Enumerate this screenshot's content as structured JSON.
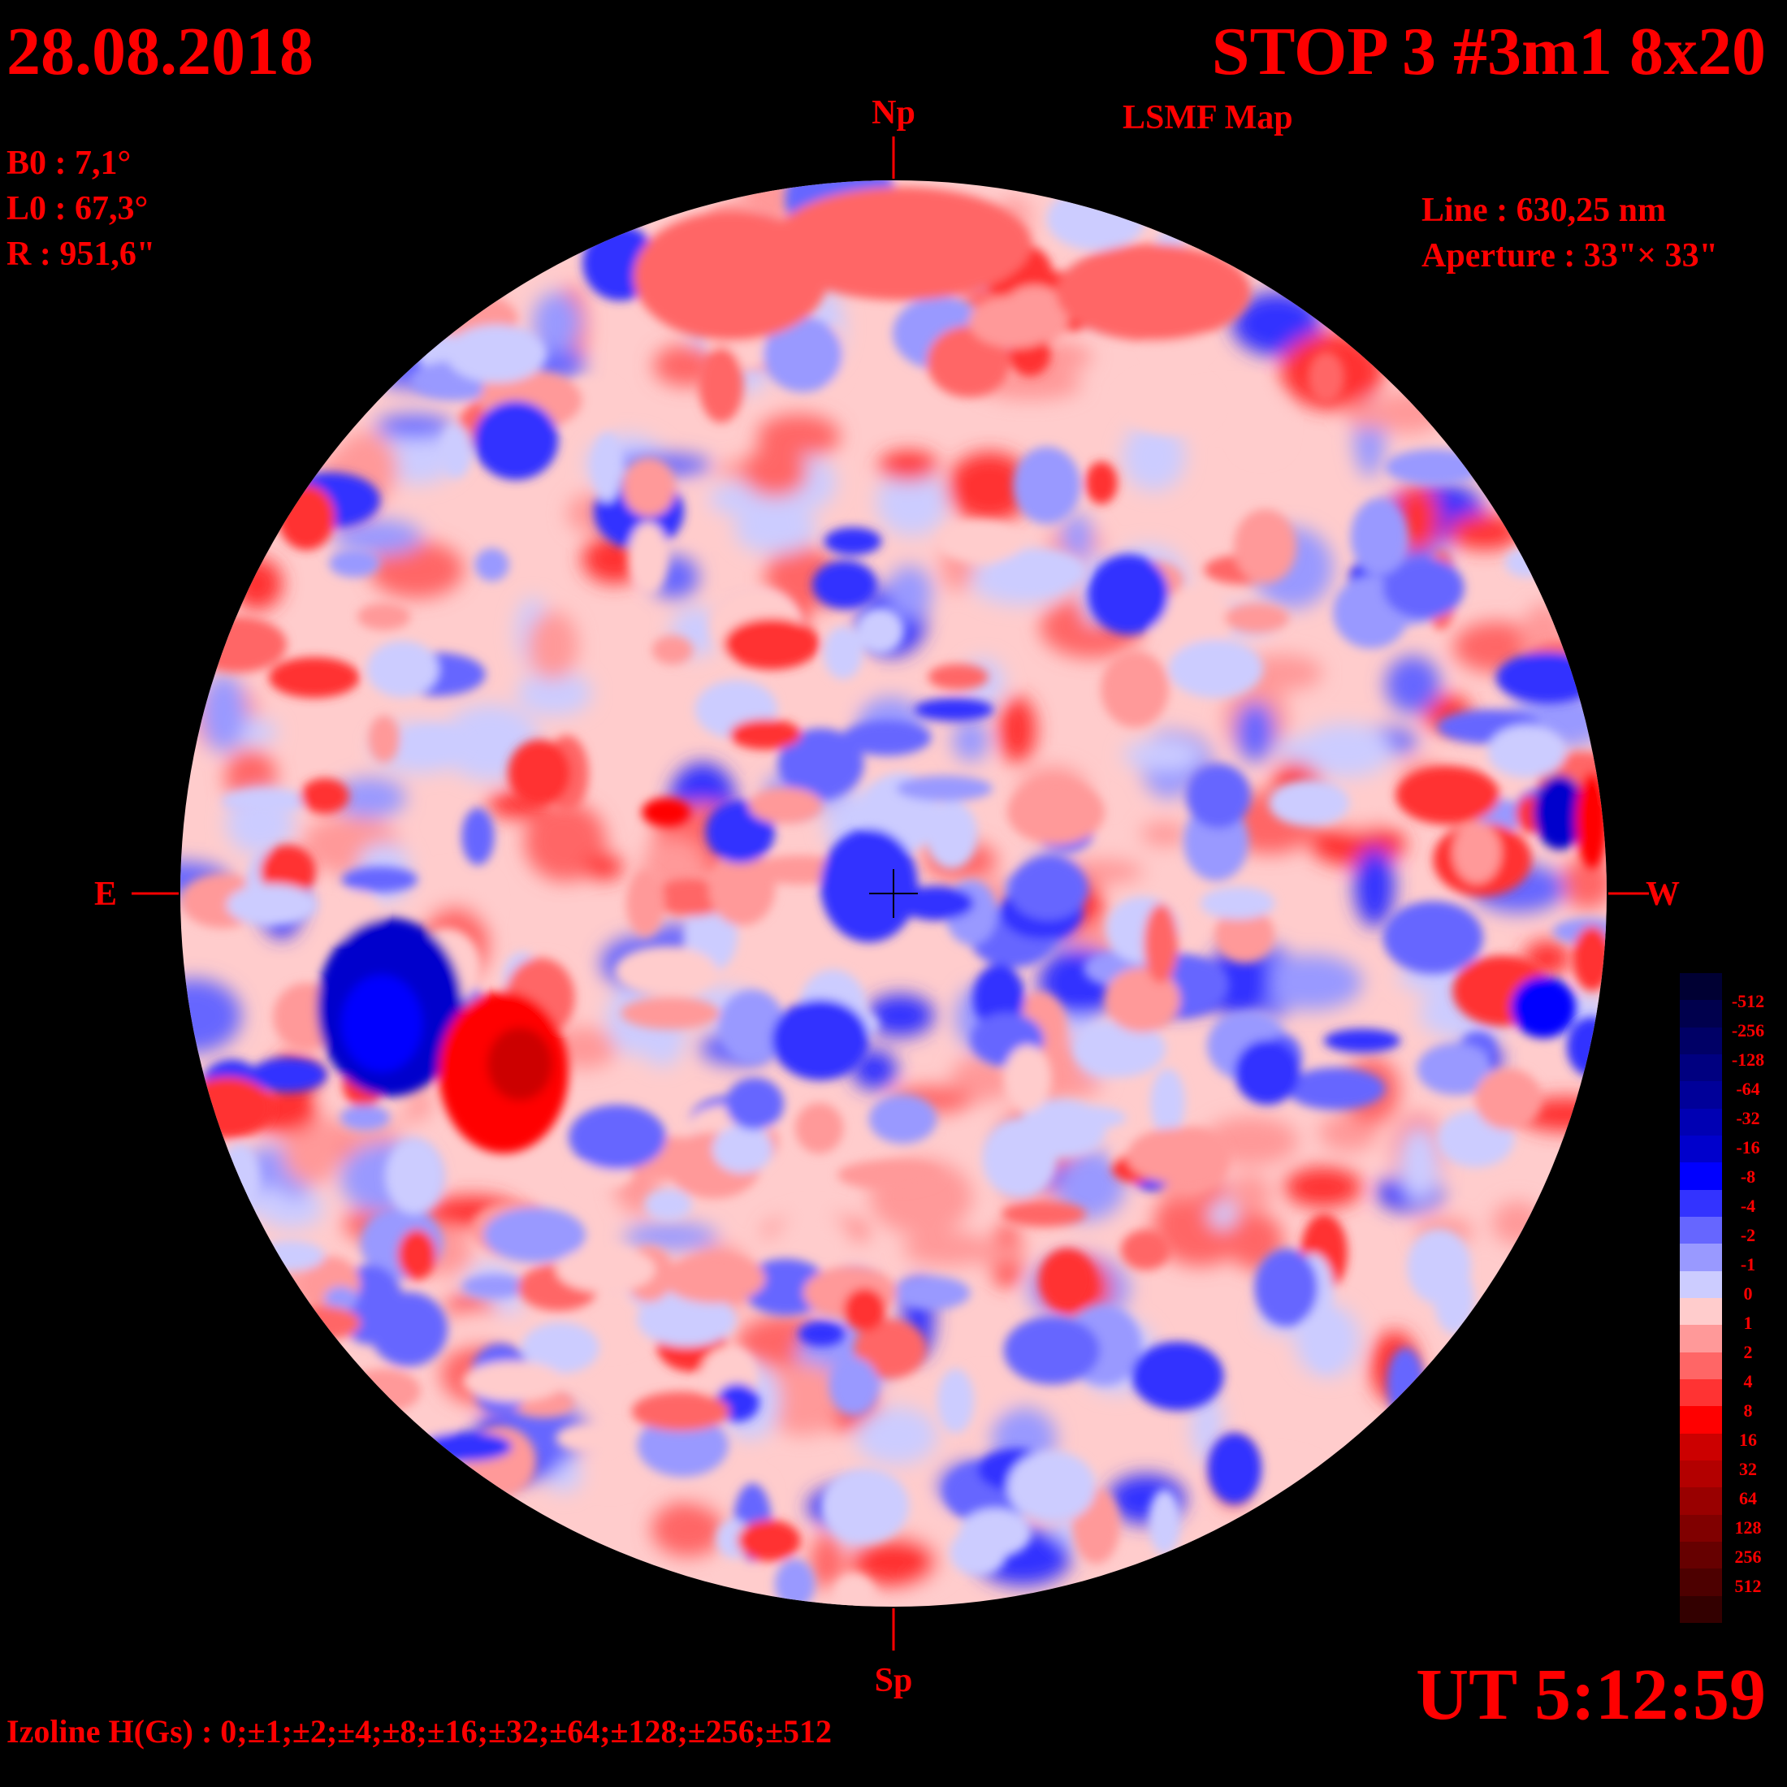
{
  "header": {
    "date": "28.08.2018",
    "title": "STOP 3 #3m1 8x20",
    "subtitle": "LSMF  Map"
  },
  "params": {
    "b0": "B0 : 7,1°",
    "l0": "L0 : 67,3°",
    "r": "R  : 951,6\""
  },
  "instrument": {
    "line": "Line :  630,25 nm",
    "aperture": "Aperture : 33\"× 33\""
  },
  "axes": {
    "north": "Np",
    "south": "Sp",
    "east": "E",
    "west": "W"
  },
  "time": "UT 5:12:59",
  "izoline": "Izoline H(Gs) : 0;±1;±2;±4;±8;±16;±32;±64;±128;±256;±512",
  "colorbar": {
    "labels": [
      "-512",
      "-256",
      "-128",
      "-64",
      "-32",
      "-16",
      "-8",
      "-4",
      "-2",
      "-1",
      "0",
      "1",
      "2",
      "4",
      "8",
      "16",
      "32",
      "64",
      "128",
      "256",
      "512"
    ],
    "colors": [
      "#000033",
      "#00004d",
      "#000066",
      "#000080",
      "#000099",
      "#0000b3",
      "#0000cc",
      "#0000ff",
      "#3333ff",
      "#6666ff",
      "#9999ff",
      "#ccccff",
      "#ffcccc",
      "#ff9999",
      "#ff6666",
      "#ff3333",
      "#ff0000",
      "#cc0000",
      "#b30000",
      "#990000",
      "#800000",
      "#660000",
      "#4d0000",
      "#330000"
    ]
  },
  "colors": {
    "text": "#ff0000",
    "background": "#000000",
    "positive": "#ff0000",
    "negative": "#0000ff"
  }
}
